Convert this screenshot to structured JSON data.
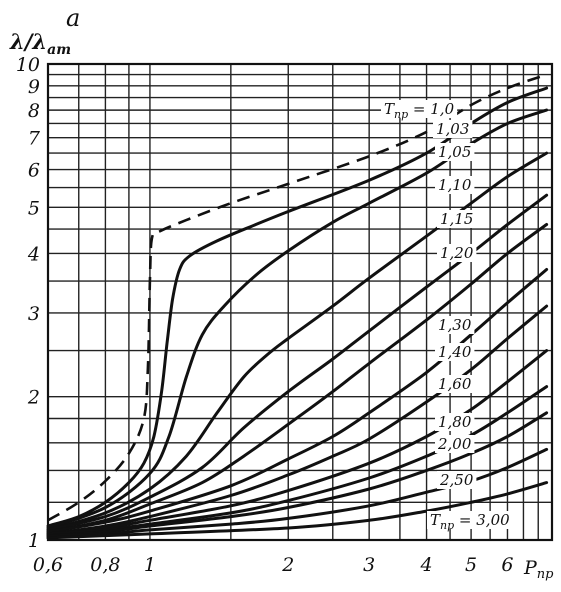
{
  "chart_data": {
    "type": "line",
    "panel_letter": "a",
    "ylabel": "λ/λ",
    "ylabel_sub": "ат",
    "xlabel": "P",
    "xlabel_sub": "пр",
    "x_scale": "log",
    "y_scale": "log",
    "xlim": [
      0.6,
      7.5
    ],
    "ylim": [
      1.0,
      10.0
    ],
    "grid": true,
    "x_ticks": [
      {
        "value": 0.6,
        "label": "0,6"
      },
      {
        "value": 0.8,
        "label": "0,8"
      },
      {
        "value": 1,
        "label": "1"
      },
      {
        "value": 2,
        "label": "2"
      },
      {
        "value": 3,
        "label": "3"
      },
      {
        "value": 4,
        "label": "4"
      },
      {
        "value": 5,
        "label": "5"
      },
      {
        "value": 6,
        "label": "6"
      }
    ],
    "y_ticks": [
      {
        "value": 1,
        "label": "1"
      },
      {
        "value": 2,
        "label": "2"
      },
      {
        "value": 3,
        "label": "3"
      },
      {
        "value": 4,
        "label": "4"
      },
      {
        "value": 5,
        "label": "5"
      },
      {
        "value": 6,
        "label": "6"
      },
      {
        "value": 7,
        "label": "7"
      },
      {
        "value": 8,
        "label": "8"
      },
      {
        "value": 9,
        "label": "9"
      },
      {
        "value": 10,
        "label": "10"
      }
    ],
    "series": [
      {
        "name": "Tпр = 1,0",
        "label": "T",
        "label_sub": "пр",
        "label_suffix": " = 1,0",
        "style": "dashed",
        "points": [
          [
            0.6,
            1.1
          ],
          [
            0.7,
            1.2
          ],
          [
            0.8,
            1.33
          ],
          [
            0.9,
            1.52
          ],
          [
            0.97,
            1.8
          ],
          [
            0.99,
            2.3
          ],
          [
            1.0,
            3.5
          ],
          [
            1.01,
            4.3
          ],
          [
            1.05,
            4.45
          ],
          [
            1.2,
            4.7
          ],
          [
            1.5,
            5.1
          ],
          [
            2,
            5.6
          ],
          [
            3,
            6.4
          ],
          [
            4,
            7.2
          ],
          [
            5,
            8.2
          ],
          [
            6,
            8.9
          ],
          [
            7.3,
            9.5
          ]
        ]
      },
      {
        "name": "1,03",
        "label": "1,03",
        "style": "solid",
        "points": [
          [
            0.6,
            1.07
          ],
          [
            0.7,
            1.12
          ],
          [
            0.8,
            1.2
          ],
          [
            0.9,
            1.32
          ],
          [
            0.97,
            1.45
          ],
          [
            1.02,
            1.65
          ],
          [
            1.06,
            2.05
          ],
          [
            1.09,
            2.6
          ],
          [
            1.12,
            3.2
          ],
          [
            1.16,
            3.7
          ],
          [
            1.22,
            3.95
          ],
          [
            1.4,
            4.25
          ],
          [
            1.7,
            4.6
          ],
          [
            2,
            4.9
          ],
          [
            3,
            5.7
          ],
          [
            4,
            6.5
          ],
          [
            5,
            7.5
          ],
          [
            6,
            8.3
          ],
          [
            7.3,
            8.9
          ]
        ]
      },
      {
        "name": "1,05",
        "label": "1,05",
        "style": "solid",
        "points": [
          [
            0.6,
            1.06
          ],
          [
            0.8,
            1.17
          ],
          [
            1.0,
            1.38
          ],
          [
            1.1,
            1.65
          ],
          [
            1.2,
            2.2
          ],
          [
            1.3,
            2.7
          ],
          [
            1.45,
            3.1
          ],
          [
            1.7,
            3.6
          ],
          [
            2,
            4.05
          ],
          [
            2.5,
            4.65
          ],
          [
            3,
            5.1
          ],
          [
            4,
            5.9
          ],
          [
            5,
            6.8
          ],
          [
            6,
            7.5
          ],
          [
            7.3,
            8.0
          ]
        ]
      },
      {
        "name": "1,10",
        "label": "1,10",
        "style": "solid",
        "points": [
          [
            0.6,
            1.05
          ],
          [
            0.8,
            1.14
          ],
          [
            1.0,
            1.28
          ],
          [
            1.2,
            1.5
          ],
          [
            1.4,
            1.85
          ],
          [
            1.6,
            2.2
          ],
          [
            1.8,
            2.45
          ],
          [
            2,
            2.65
          ],
          [
            2.5,
            3.1
          ],
          [
            3,
            3.55
          ],
          [
            4,
            4.35
          ],
          [
            5,
            5.1
          ],
          [
            6,
            5.8
          ],
          [
            7.3,
            6.5
          ]
        ]
      },
      {
        "name": "1,15",
        "label": "1,15",
        "style": "solid",
        "points": [
          [
            0.6,
            1.05
          ],
          [
            0.8,
            1.12
          ],
          [
            1.0,
            1.23
          ],
          [
            1.3,
            1.42
          ],
          [
            1.6,
            1.72
          ],
          [
            2,
            2.05
          ],
          [
            2.5,
            2.4
          ],
          [
            3,
            2.75
          ],
          [
            4,
            3.4
          ],
          [
            5,
            4.0
          ],
          [
            6,
            4.6
          ],
          [
            7.3,
            5.3
          ]
        ]
      },
      {
        "name": "1,20",
        "label": "1,20",
        "style": "solid",
        "points": [
          [
            0.6,
            1.04
          ],
          [
            0.8,
            1.1
          ],
          [
            1.0,
            1.19
          ],
          [
            1.3,
            1.32
          ],
          [
            1.6,
            1.5
          ],
          [
            2,
            1.75
          ],
          [
            2.5,
            2.05
          ],
          [
            3,
            2.35
          ],
          [
            4,
            2.9
          ],
          [
            5,
            3.45
          ],
          [
            6,
            4.0
          ],
          [
            7.3,
            4.6
          ]
        ]
      },
      {
        "name": "1,30",
        "label": "1,30",
        "style": "solid",
        "points": [
          [
            0.6,
            1.04
          ],
          [
            0.8,
            1.09
          ],
          [
            1.0,
            1.15
          ],
          [
            1.5,
            1.3
          ],
          [
            2,
            1.48
          ],
          [
            2.5,
            1.65
          ],
          [
            3,
            1.85
          ],
          [
            4,
            2.25
          ],
          [
            5,
            2.7
          ],
          [
            6,
            3.15
          ],
          [
            7.3,
            3.7
          ]
        ]
      },
      {
        "name": "1,40",
        "label": "1,40",
        "style": "solid",
        "points": [
          [
            0.6,
            1.03
          ],
          [
            0.8,
            1.07
          ],
          [
            1.0,
            1.12
          ],
          [
            1.5,
            1.24
          ],
          [
            2,
            1.37
          ],
          [
            2.5,
            1.5
          ],
          [
            3,
            1.63
          ],
          [
            4,
            1.95
          ],
          [
            5,
            2.28
          ],
          [
            6,
            2.65
          ],
          [
            7.3,
            3.1
          ]
        ]
      },
      {
        "name": "1,60",
        "label": "1,60",
        "style": "solid",
        "points": [
          [
            0.6,
            1.03
          ],
          [
            0.8,
            1.06
          ],
          [
            1.0,
            1.1
          ],
          [
            1.5,
            1.18
          ],
          [
            2,
            1.27
          ],
          [
            3,
            1.45
          ],
          [
            4,
            1.65
          ],
          [
            5,
            1.88
          ],
          [
            6,
            2.15
          ],
          [
            7.3,
            2.5
          ]
        ]
      },
      {
        "name": "1,80",
        "label": "1,80",
        "style": "solid",
        "points": [
          [
            0.6,
            1.03
          ],
          [
            0.8,
            1.05
          ],
          [
            1.0,
            1.08
          ],
          [
            1.5,
            1.14
          ],
          [
            2,
            1.21
          ],
          [
            3,
            1.35
          ],
          [
            4,
            1.5
          ],
          [
            5,
            1.66
          ],
          [
            6,
            1.85
          ],
          [
            7.3,
            2.1
          ]
        ]
      },
      {
        "name": "2,00",
        "label": "2,00",
        "style": "solid",
        "points": [
          [
            0.6,
            1.02
          ],
          [
            0.8,
            1.04
          ],
          [
            1.0,
            1.07
          ],
          [
            1.5,
            1.12
          ],
          [
            2,
            1.17
          ],
          [
            3,
            1.28
          ],
          [
            4,
            1.4
          ],
          [
            5,
            1.52
          ],
          [
            6,
            1.65
          ],
          [
            7.3,
            1.85
          ]
        ]
      },
      {
        "name": "2,50",
        "label": "2,50",
        "style": "solid",
        "points": [
          [
            0.6,
            1.02
          ],
          [
            0.8,
            1.03
          ],
          [
            1.0,
            1.05
          ],
          [
            1.5,
            1.08
          ],
          [
            2,
            1.11
          ],
          [
            3,
            1.18
          ],
          [
            4,
            1.26
          ],
          [
            5,
            1.33
          ],
          [
            6,
            1.42
          ],
          [
            7.3,
            1.55
          ]
        ]
      },
      {
        "name": "Tпр = 3,00",
        "label": "T",
        "label_sub": "пр",
        "label_suffix": " = 3,00",
        "style": "solid",
        "points": [
          [
            0.6,
            1.01
          ],
          [
            1.0,
            1.03
          ],
          [
            2,
            1.06
          ],
          [
            3,
            1.1
          ],
          [
            4,
            1.15
          ],
          [
            5,
            1.2
          ],
          [
            6,
            1.25
          ],
          [
            7.3,
            1.32
          ]
        ]
      }
    ]
  }
}
